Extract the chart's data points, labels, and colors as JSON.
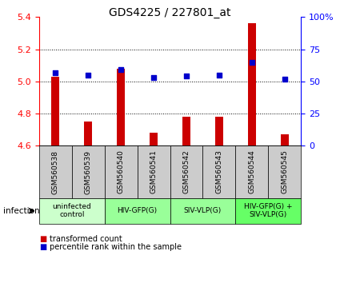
{
  "title": "GDS4225 / 227801_at",
  "samples": [
    "GSM560538",
    "GSM560539",
    "GSM560540",
    "GSM560541",
    "GSM560542",
    "GSM560543",
    "GSM560544",
    "GSM560545"
  ],
  "transformed_count": [
    5.03,
    4.75,
    5.08,
    4.68,
    4.78,
    4.78,
    5.36,
    4.67
  ],
  "percentile_rank": [
    57,
    55,
    59,
    53,
    54,
    55,
    65,
    52
  ],
  "ylim_left": [
    4.6,
    5.4
  ],
  "ylim_right": [
    0,
    100
  ],
  "yticks_left": [
    4.6,
    4.8,
    5.0,
    5.2,
    5.4
  ],
  "yticks_right": [
    0,
    25,
    50,
    75,
    100
  ],
  "ytick_right_labels": [
    "0",
    "25",
    "50",
    "75",
    "100%"
  ],
  "bar_color": "#cc0000",
  "dot_color": "#0000cc",
  "background_color": "#ffffff",
  "groups": [
    {
      "label": "uninfected\ncontrol",
      "start": 0,
      "end": 1,
      "color": "#ccffcc"
    },
    {
      "label": "HIV-GFP(G)",
      "start": 2,
      "end": 3,
      "color": "#99ff99"
    },
    {
      "label": "SIV-VLP(G)",
      "start": 4,
      "end": 5,
      "color": "#99ff99"
    },
    {
      "label": "HIV-GFP(G) +\nSIV-VLP(G)",
      "start": 6,
      "end": 7,
      "color": "#66ff66"
    }
  ],
  "sample_box_color": "#cccccc",
  "infection_label": "infection",
  "legend_items": [
    {
      "color": "#cc0000",
      "label": "transformed count"
    },
    {
      "color": "#0000cc",
      "label": "percentile rank within the sample"
    }
  ],
  "bar_width": 0.25,
  "dot_size": 25
}
